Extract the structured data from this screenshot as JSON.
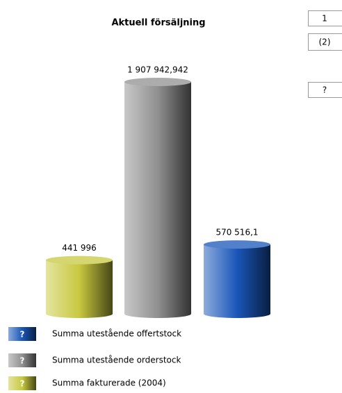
{
  "chart_data": {
    "type": "bar",
    "title": "Aktuell försäljning",
    "series": [
      {
        "name": "Summa fakturerade (2004)",
        "color": "#c8c840",
        "values": [
          441996
        ],
        "value_labels": [
          "441 996"
        ]
      },
      {
        "name": "Summa utestående orderstock",
        "color": "#909090",
        "values": [
          1907942.942
        ],
        "value_labels": [
          "1 907 942,942"
        ]
      },
      {
        "name": "Summa utestående offertstock",
        "color": "#1a56b8",
        "values": [
          570516.1
        ],
        "value_labels": [
          "570 516,1"
        ]
      }
    ],
    "legend_marker": "?",
    "side_buttons": [
      "1",
      "(2)",
      "?"
    ]
  }
}
